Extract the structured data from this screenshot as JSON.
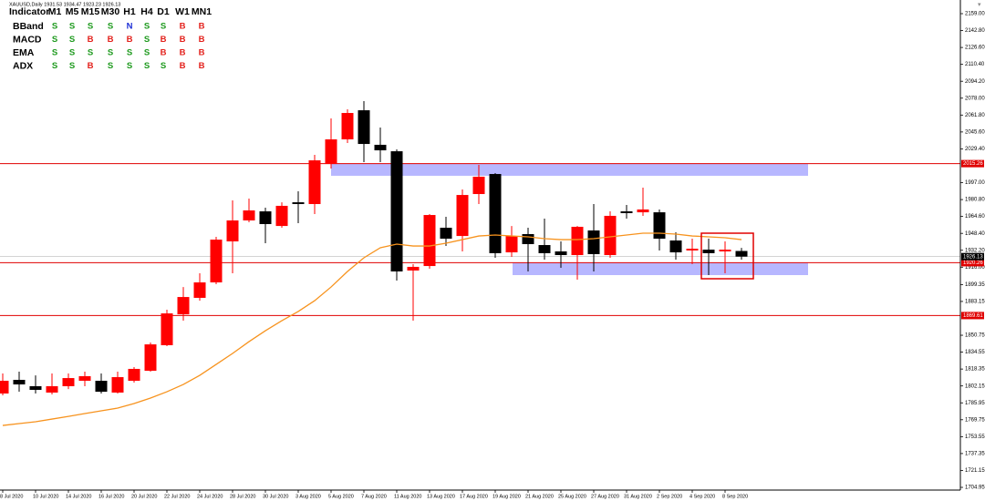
{
  "header": "XAUUSD,Daily  1931.53 1934.47 1923.23 1926.13",
  "indicator_table": {
    "header": [
      "Indicator",
      "M1",
      "M5",
      "M15",
      "M30",
      "H1",
      "H4",
      "D1",
      "W1",
      "MN1"
    ],
    "rows": [
      {
        "label": "BBand",
        "signals": [
          "S",
          "S",
          "S",
          "S",
          "N",
          "S",
          "S",
          "B",
          "B"
        ]
      },
      {
        "label": "MACD",
        "signals": [
          "S",
          "S",
          "B",
          "B",
          "B",
          "S",
          "B",
          "B",
          "B"
        ]
      },
      {
        "label": "EMA",
        "signals": [
          "S",
          "S",
          "S",
          "S",
          "S",
          "S",
          "B",
          "B",
          "B"
        ]
      },
      {
        "label": "ADX",
        "signals": [
          "S",
          "S",
          "B",
          "S",
          "S",
          "S",
          "S",
          "B",
          "B"
        ]
      }
    ],
    "signal_colors": {
      "S": "#1e9a1e",
      "B": "#e3201b",
      "N": "#1d2fd6"
    }
  },
  "chart_data": {
    "type": "candlestick",
    "categories": [
      "8 Jul 2020",
      null,
      "10 Jul 2020",
      null,
      "14 Jul 2020",
      null,
      "16 Jul 2020",
      null,
      "20 Jul 2020",
      null,
      "22 Jul 2020",
      null,
      "24 Jul 2020",
      null,
      "28 Jul 2020",
      null,
      "30 Jul 2020",
      null,
      "3 Aug 2020",
      null,
      "5 Aug 2020",
      null,
      "7 Aug 2020",
      null,
      "11 Aug 2020",
      null,
      "13 Aug 2020",
      null,
      "17 Aug 2020",
      null,
      "19 Aug 2020",
      null,
      "21 Aug 2020",
      null,
      "25 Aug 2020",
      null,
      "27 Aug 2020",
      null,
      "31 Aug 2020",
      null,
      "2 Sep 2020",
      null,
      "4 Sep 2020",
      null,
      "8 Sep 2020",
      null
    ],
    "open": [
      1794.9,
      1808.0,
      1801.9,
      1795.8,
      1801.9,
      1807.1,
      1807.1,
      1795.8,
      1807.1,
      1816.7,
      1841.2,
      1870.8,
      1886.6,
      1901.4,
      1940.7,
      1960.8,
      1969.5,
      1955.5,
      1978.2,
      1976.5,
      2014.9,
      2038.5,
      2066.4,
      2033.3,
      2027.1,
      1912.8,
      1917.1,
      1953.8,
      1945.9,
      1986.1,
      2005.3,
      1930.2,
      1947.7,
      1937.2,
      1931.1,
      1927.6,
      1951.2,
      1927.6,
      1969.5,
      1968.6,
      1968.6,
      1941.6,
      1932.0,
      1932.8,
      1931.1,
      1931.53
    ],
    "high": [
      1814.1,
      1815.8,
      1812.3,
      1814.1,
      1814.1,
      1815.8,
      1814.1,
      1815.8,
      1820.2,
      1843.8,
      1875.2,
      1897.0,
      1910.1,
      1945.1,
      1980.0,
      1981.7,
      1973.0,
      1978.2,
      1988.7,
      2023.7,
      2058.6,
      2067.3,
      2075.2,
      2049.9,
      2028.9,
      1918.9,
      1966.9,
      1964.3,
      1990.5,
      2014.1,
      2006.2,
      1955.5,
      1953.8,
      1962.5,
      1940.7,
      1955.5,
      1976.5,
      1969.5,
      1975.6,
      1992.2,
      1971.3,
      1949.4,
      1943.3,
      1943.3,
      1940.7,
      1934.47
    ],
    "low": [
      1793.1,
      1796.6,
      1794.9,
      1794.0,
      1799.2,
      1801.9,
      1794.9,
      1794.9,
      1805.4,
      1815.8,
      1840.3,
      1864.7,
      1883.9,
      1899.7,
      1910.1,
      1959.0,
      1939.0,
      1953.8,
      1958.2,
      1966.9,
      2010.6,
      2035.0,
      2016.7,
      2016.7,
      1903.2,
      1864.7,
      1914.5,
      1936.3,
      1931.1,
      1976.5,
      1925.0,
      1925.9,
      1911.9,
      1923.2,
      1915.4,
      1904.0,
      1911.9,
      1925.0,
      1962.5,
      1965.2,
      1932.0,
      1923.2,
      1918.9,
      1908.4,
      1910.1,
      1923.23
    ],
    "close": [
      1807.1,
      1803.6,
      1798.4,
      1801.9,
      1809.7,
      1811.5,
      1796.6,
      1810.6,
      1818.5,
      1842.0,
      1871.7,
      1887.4,
      1901.4,
      1942.4,
      1960.8,
      1970.4,
      1957.3,
      1974.8,
      1976.5,
      2018.4,
      2038.5,
      2063.8,
      2034.1,
      2028.0,
      1911.9,
      1916.3,
      1966.0,
      1943.3,
      1985.2,
      2002.7,
      1929.4,
      1945.9,
      1938.1,
      1929.4,
      1927.6,
      1954.7,
      1928.5,
      1965.2,
      1967.8,
      1971.3,
      1943.3,
      1930.2,
      1933.7,
      1929.4,
      1932.8,
      1926.13
    ],
    "up_color": "#ff0000",
    "down_color": "#000000",
    "moving_average": {
      "color": "#f7931e",
      "values": [
        1764.3,
        1766.1,
        1767.8,
        1770.4,
        1773.0,
        1775.7,
        1778.3,
        1780.9,
        1785.3,
        1790.5,
        1796.6,
        1803.6,
        1812.3,
        1822.8,
        1833.3,
        1844.6,
        1855.1,
        1864.7,
        1873.5,
        1883.9,
        1897.0,
        1911.9,
        1925.0,
        1934.6,
        1938.1,
        1936.3,
        1936.3,
        1939.0,
        1942.4,
        1945.9,
        1946.8,
        1945.9,
        1945.1,
        1943.3,
        1942.4,
        1942.4,
        1943.3,
        1945.1,
        1946.8,
        1948.6,
        1948.6,
        1947.7,
        1945.9,
        1945.1,
        1944.2,
        1942.4
      ]
    },
    "levels": [
      {
        "value": 2015.26,
        "color": "#e00000"
      },
      {
        "value": 1920.26,
        "color": "#e00000"
      },
      {
        "value": 1869.61,
        "color": "#e00000"
      }
    ],
    "current_price": {
      "value": 1926.13,
      "color": "#000000"
    },
    "zones": [
      {
        "high": 2015.26,
        "low": 2003.6,
        "color": "#aaaaff"
      },
      {
        "high": 1920.26,
        "low": 1908.4,
        "color": "#aaaaff"
      }
    ],
    "ylim": [
      1700.6,
      2168.6
    ],
    "yticks": [
      {
        "value": 2159.0,
        "label": "2159.00"
      },
      {
        "value": 2142.8,
        "label": "2142.80"
      },
      {
        "value": 2126.6,
        "label": "2126.60"
      },
      {
        "value": 2110.4,
        "label": "2110.40"
      },
      {
        "value": 2094.2,
        "label": "2094.20"
      },
      {
        "value": 2078.0,
        "label": "2078.00"
      },
      {
        "value": 2061.8,
        "label": "2061.80"
      },
      {
        "value": 2045.6,
        "label": "2045.60"
      },
      {
        "value": 2029.4,
        "label": "2029.40"
      },
      {
        "value": 1997.0,
        "label": "1997.00"
      },
      {
        "value": 1980.8,
        "label": "1980.80"
      },
      {
        "value": 1964.6,
        "label": "1964.60"
      },
      {
        "value": 1948.4,
        "label": "1948.40"
      },
      {
        "value": 1932.2,
        "label": "1932.20"
      },
      {
        "value": 1916.0,
        "label": "1916.00"
      },
      {
        "value": 1899.35,
        "label": "1899.35"
      },
      {
        "value": 1883.15,
        "label": "1883.15"
      },
      {
        "value": 1850.75,
        "label": "1850.75"
      },
      {
        "value": 1834.55,
        "label": "1834.55"
      },
      {
        "value": 1818.35,
        "label": "1818.35"
      },
      {
        "value": 1802.15,
        "label": "1802.15"
      },
      {
        "value": 1785.95,
        "label": "1785.95"
      },
      {
        "value": 1769.75,
        "label": "1769.75"
      },
      {
        "value": 1753.55,
        "label": "1753.55"
      },
      {
        "value": 1737.35,
        "label": "1737.35"
      },
      {
        "value": 1721.15,
        "label": "1721.15"
      },
      {
        "value": 1704.95,
        "label": "1704.95"
      }
    ]
  }
}
